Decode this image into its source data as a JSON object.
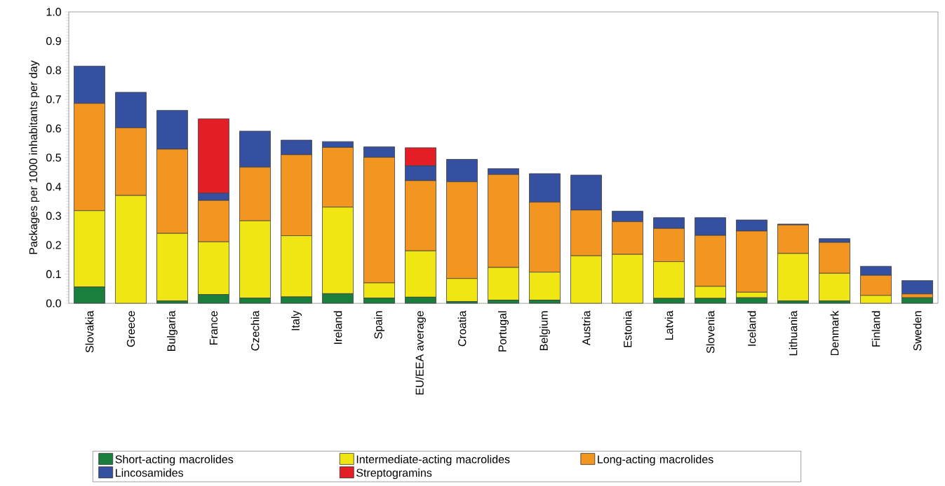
{
  "chart_data": {
    "type": "bar",
    "stacked": true,
    "ylabel": "Packages per 1000 inhabitants per day",
    "categories": [
      "Slovakia",
      "Greece",
      "Bulgaria",
      "France",
      "Czechia",
      "Italy",
      "Ireland",
      "Spain",
      "EU/EEA average",
      "Croatia",
      "Portugal",
      "Belgium",
      "Austria",
      "Estonia",
      "Latvia",
      "Slovenia",
      "Iceland",
      "Lithuania",
      "Denmark",
      "Finland",
      "Sweden"
    ],
    "series": [
      {
        "name": "Short-acting macrolides",
        "color": "#1a7f3c",
        "values": [
          0.056,
          0,
          0.008,
          0.03,
          0.018,
          0.022,
          0.033,
          0.018,
          0.021,
          0.006,
          0.011,
          0.011,
          0,
          0,
          0.017,
          0.017,
          0.019,
          0.008,
          0.008,
          0,
          0.019
        ]
      },
      {
        "name": "Intermediate-acting macrolides",
        "color": "#f0e614",
        "values": [
          0.262,
          0.37,
          0.232,
          0.181,
          0.265,
          0.21,
          0.297,
          0.052,
          0.159,
          0.079,
          0.112,
          0.096,
          0.163,
          0.168,
          0.126,
          0.041,
          0.019,
          0.163,
          0.095,
          0.027,
          0
        ]
      },
      {
        "name": "Long-acting macrolides",
        "color": "#f39621",
        "values": [
          0.368,
          0.232,
          0.289,
          0.142,
          0.184,
          0.278,
          0.205,
          0.431,
          0.241,
          0.332,
          0.319,
          0.24,
          0.157,
          0.112,
          0.114,
          0.175,
          0.21,
          0.098,
          0.106,
          0.069,
          0.013
        ]
      },
      {
        "name": "Lincosamides",
        "color": "#3550a0",
        "values": [
          0.128,
          0.122,
          0.133,
          0.025,
          0.124,
          0.05,
          0.02,
          0.036,
          0.051,
          0.077,
          0.02,
          0.098,
          0.12,
          0.036,
          0.037,
          0.061,
          0.038,
          0.003,
          0.013,
          0.031,
          0.046
        ]
      },
      {
        "name": "Streptogramins",
        "color": "#e41e25",
        "values": [
          0,
          0,
          0,
          0.255,
          0,
          0,
          0,
          0,
          0.062,
          0,
          0,
          0,
          0,
          0,
          0,
          0,
          0,
          0,
          0,
          0,
          0
        ]
      }
    ],
    "ylim": [
      0,
      1.0
    ],
    "yticks": [
      {
        "value": 0,
        "label": "0.0"
      },
      0.1,
      0.2,
      0.3,
      0.4,
      0.5,
      0.6,
      0.7,
      0.8,
      0.9,
      {
        "value": 1.0,
        "label": "1.0"
      }
    ],
    "grid": false,
    "legend": "bottom"
  }
}
